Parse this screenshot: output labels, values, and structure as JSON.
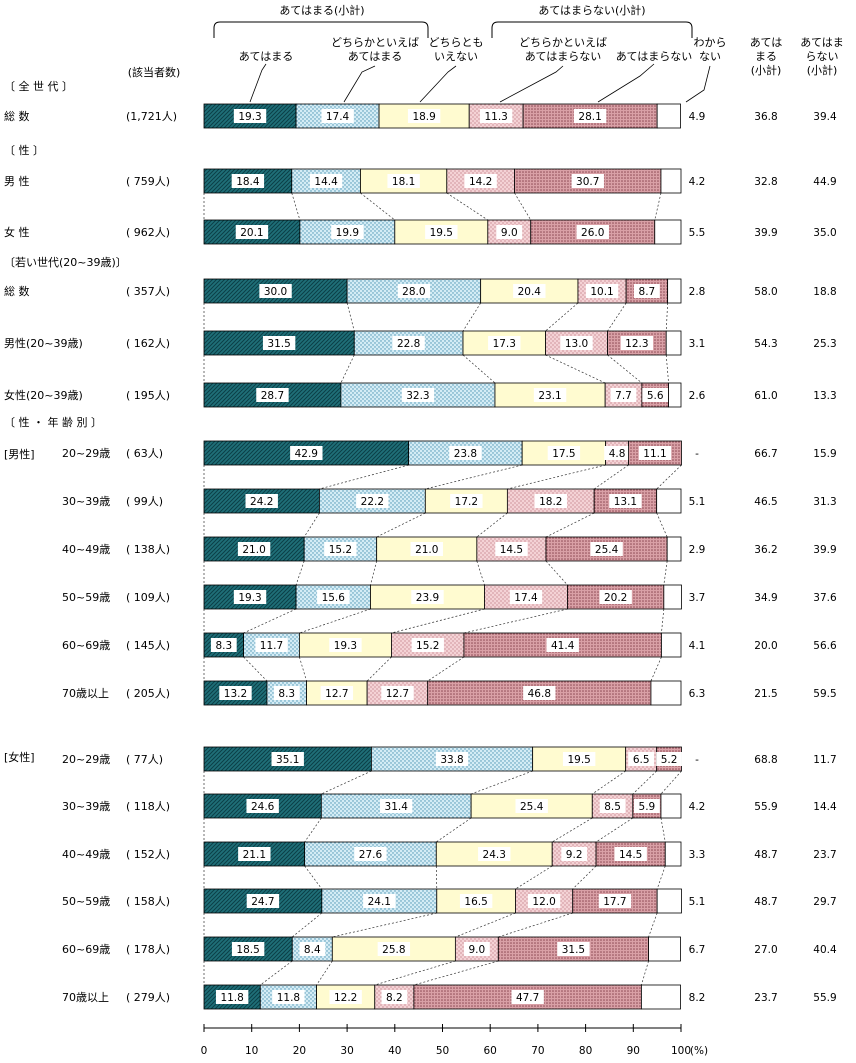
{
  "header": {
    "group_agree": "あてはまる(小計)",
    "group_disagree": "あてはまらない(小計)",
    "cat_labels": [
      [
        "あてはまる"
      ],
      [
        "どちらかといえば",
        "あてはまる"
      ],
      [
        "どちらとも",
        "いえない"
      ],
      [
        "どちらかといえば",
        "あてはまらない"
      ],
      [
        "あてはまらない"
      ],
      [
        "わから",
        "ない"
      ]
    ],
    "col_agree_sub": [
      "あては",
      "まる",
      "(小計)"
    ],
    "col_disagree_sub": [
      "あてはま",
      "らない",
      "(小計)"
    ],
    "respondents_header": "(該当者数)"
  },
  "section_labels": {
    "all": "〔 全 世 代 〕",
    "sex": "〔 性 〕",
    "young": "〔若い世代(20~39歳)〕",
    "sex_age": "〔 性 ・ 年 齢 別 〕"
  },
  "group_labels": {
    "male": "[男性]",
    "female": "[女性]"
  },
  "chart_data": {
    "type": "bar",
    "orientation": "horizontal-stacked-100",
    "xlabel": "(%)",
    "xlim": [
      0,
      100
    ],
    "x_ticks": [
      "0",
      "10",
      "20",
      "30",
      "40",
      "50",
      "60",
      "70",
      "80",
      "90",
      "100"
    ],
    "series": [
      "あてはまる",
      "どちらかといえばあてはまる",
      "どちらともいえない",
      "どちらかといえばあてはまらない",
      "あてはまらない",
      "わからない"
    ],
    "colors": {
      "s0": "#1f6f78",
      "s1": "#d4ecf5",
      "s2": "#fffbd0",
      "s3": "#f0c4c8",
      "s4": "#d9a0a6",
      "s5": "#ffffff"
    },
    "rows": [
      {
        "label": "総 数",
        "n": "(1,721人)",
        "values": [
          19.3,
          17.4,
          18.9,
          11.3,
          28.1,
          4.9
        ],
        "labels": [
          "19.3",
          "17.4",
          "18.9",
          "11.3",
          "28.1",
          "4.9"
        ],
        "agree": "36.8",
        "disagree": "39.4"
      },
      {
        "label": "男 性",
        "n": "( 759人)",
        "values": [
          18.4,
          14.4,
          18.1,
          14.2,
          30.7,
          4.2
        ],
        "labels": [
          "18.4",
          "14.4",
          "18.1",
          "14.2",
          "30.7",
          "4.2"
        ],
        "agree": "32.8",
        "disagree": "44.9"
      },
      {
        "label": "女 性",
        "n": "( 962人)",
        "values": [
          20.1,
          19.9,
          19.5,
          9.0,
          26.0,
          5.5
        ],
        "labels": [
          "20.1",
          "19.9",
          "19.5",
          "9.0",
          "26.0",
          "5.5"
        ],
        "agree": "39.9",
        "disagree": "35.0"
      },
      {
        "label": "総 数",
        "n": "( 357人)",
        "values": [
          30.0,
          28.0,
          20.4,
          10.1,
          8.7,
          2.8
        ],
        "labels": [
          "30.0",
          "28.0",
          "20.4",
          "10.1",
          "8.7",
          "2.8"
        ],
        "agree": "58.0",
        "disagree": "18.8"
      },
      {
        "label": "男性(20~39歳)",
        "n": "( 162人)",
        "values": [
          31.5,
          22.8,
          17.3,
          13.0,
          12.3,
          3.1
        ],
        "labels": [
          "31.5",
          "22.8",
          "17.3",
          "13.0",
          "12.3",
          "3.1"
        ],
        "agree": "54.3",
        "disagree": "25.3"
      },
      {
        "label": "女性(20~39歳)",
        "n": "( 195人)",
        "values": [
          28.7,
          32.3,
          23.1,
          7.7,
          5.6,
          2.6
        ],
        "labels": [
          "28.7",
          "32.3",
          "23.1",
          "7.7",
          "5.6",
          "2.6"
        ],
        "agree": "61.0",
        "disagree": "13.3"
      },
      {
        "label": "20~29歳",
        "n": "( 63人)",
        "values": [
          42.9,
          23.8,
          17.5,
          4.8,
          11.1,
          0
        ],
        "labels": [
          "42.9",
          "23.8",
          "17.5",
          "4.8",
          "11.1",
          "-"
        ],
        "agree": "66.7",
        "disagree": "15.9"
      },
      {
        "label": "30~39歳",
        "n": "( 99人)",
        "values": [
          24.2,
          22.2,
          17.2,
          18.2,
          13.1,
          5.1
        ],
        "labels": [
          "24.2",
          "22.2",
          "17.2",
          "18.2",
          "13.1",
          "5.1"
        ],
        "agree": "46.5",
        "disagree": "31.3"
      },
      {
        "label": "40~49歳",
        "n": "( 138人)",
        "values": [
          21.0,
          15.2,
          21.0,
          14.5,
          25.4,
          2.9
        ],
        "labels": [
          "21.0",
          "15.2",
          "21.0",
          "14.5",
          "25.4",
          "2.9"
        ],
        "agree": "36.2",
        "disagree": "39.9"
      },
      {
        "label": "50~59歳",
        "n": "( 109人)",
        "values": [
          19.3,
          15.6,
          23.9,
          17.4,
          20.2,
          3.7
        ],
        "labels": [
          "19.3",
          "15.6",
          "23.9",
          "17.4",
          "20.2",
          "3.7"
        ],
        "agree": "34.9",
        "disagree": "37.6"
      },
      {
        "label": "60~69歳",
        "n": "( 145人)",
        "values": [
          8.3,
          11.7,
          19.3,
          15.2,
          41.4,
          4.1
        ],
        "labels": [
          "8.3",
          "11.7",
          "19.3",
          "15.2",
          "41.4",
          "4.1"
        ],
        "agree": "20.0",
        "disagree": "56.6"
      },
      {
        "label": "70歳以上",
        "n": "( 205人)",
        "values": [
          13.2,
          8.3,
          12.7,
          12.7,
          46.8,
          6.3
        ],
        "labels": [
          "13.2",
          "8.3",
          "12.7",
          "12.7",
          "46.8",
          "6.3"
        ],
        "agree": "21.5",
        "disagree": "59.5"
      },
      {
        "label": "20~29歳",
        "n": "( 77人)",
        "values": [
          35.1,
          33.8,
          19.5,
          6.5,
          5.2,
          0
        ],
        "labels": [
          "35.1",
          "33.8",
          "19.5",
          "6.5",
          "5.2",
          "-"
        ],
        "agree": "68.8",
        "disagree": "11.7"
      },
      {
        "label": "30~39歳",
        "n": "( 118人)",
        "values": [
          24.6,
          31.4,
          25.4,
          8.5,
          5.9,
          4.2
        ],
        "labels": [
          "24.6",
          "31.4",
          "25.4",
          "8.5",
          "5.9",
          "4.2"
        ],
        "agree": "55.9",
        "disagree": "14.4"
      },
      {
        "label": "40~49歳",
        "n": "( 152人)",
        "values": [
          21.1,
          27.6,
          24.3,
          9.2,
          14.5,
          3.3
        ],
        "labels": [
          "21.1",
          "27.6",
          "24.3",
          "9.2",
          "14.5",
          "3.3"
        ],
        "agree": "48.7",
        "disagree": "23.7"
      },
      {
        "label": "50~59歳",
        "n": "( 158人)",
        "values": [
          24.7,
          24.1,
          16.5,
          12.0,
          17.7,
          5.1
        ],
        "labels": [
          "24.7",
          "24.1",
          "16.5",
          "12.0",
          "17.7",
          "5.1"
        ],
        "agree": "48.7",
        "disagree": "29.7"
      },
      {
        "label": "60~69歳",
        "n": "( 178人)",
        "values": [
          18.5,
          8.4,
          25.8,
          9.0,
          31.5,
          6.7
        ],
        "labels": [
          "18.5",
          "8.4",
          "25.8",
          "9.0",
          "31.5",
          "6.7"
        ],
        "agree": "27.0",
        "disagree": "40.4"
      },
      {
        "label": "70歳以上",
        "n": "( 279人)",
        "values": [
          11.8,
          11.8,
          12.2,
          8.2,
          47.7,
          8.2
        ],
        "labels": [
          "11.8",
          "11.8",
          "12.2",
          "8.2",
          "47.7",
          "8.2"
        ],
        "agree": "23.7",
        "disagree": "55.9"
      }
    ]
  }
}
